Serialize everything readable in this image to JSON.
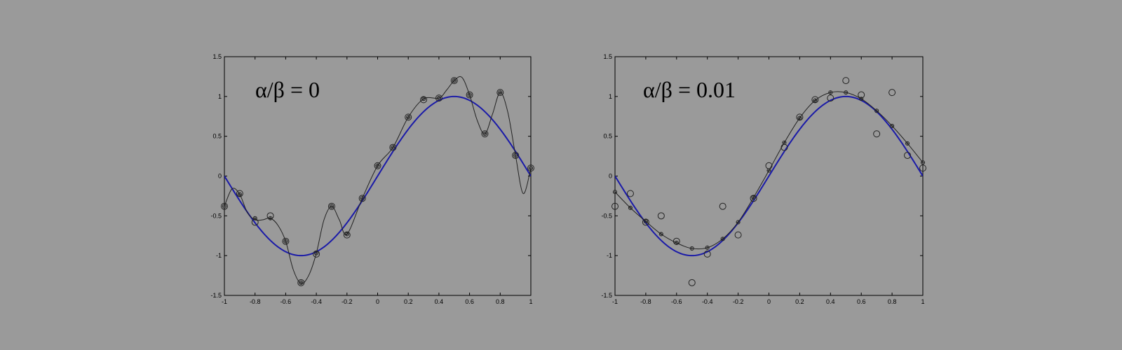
{
  "chart_data": [
    {
      "type": "line",
      "annotation": "α/β = 0",
      "xlim": [
        -1,
        1
      ],
      "ylim": [
        -1.5,
        1.5
      ],
      "x_ticks": [
        "-1",
        "-0.8",
        "-0.6",
        "-0.4",
        "-0.2",
        "0",
        "0.2",
        "0.4",
        "0.6",
        "0.8",
        "1"
      ],
      "y_ticks": [
        "-1.5",
        "-1",
        "-0.5",
        "0",
        "0.5",
        "1",
        "1.5"
      ],
      "grid": false,
      "series": [
        {
          "kind": "true_function",
          "color": "#1a1aa8",
          "x": [
            -1,
            -0.9,
            -0.8,
            -0.7,
            -0.6,
            -0.5,
            -0.4,
            -0.3,
            -0.2,
            -0.1,
            0,
            0.1,
            0.2,
            0.3,
            0.4,
            0.5,
            0.6,
            0.7,
            0.8,
            0.9,
            1
          ],
          "y": [
            0,
            -0.31,
            -0.59,
            -0.81,
            -0.95,
            -1,
            -0.95,
            -0.81,
            -0.59,
            -0.31,
            0,
            0.31,
            0.59,
            0.81,
            0.95,
            1,
            0.95,
            0.81,
            0.59,
            0.31,
            0
          ]
        },
        {
          "kind": "fit",
          "color": "#222222",
          "x": [
            -1,
            -0.95,
            -0.9,
            -0.85,
            -0.8,
            -0.75,
            -0.7,
            -0.65,
            -0.6,
            -0.55,
            -0.5,
            -0.45,
            -0.4,
            -0.35,
            -0.3,
            -0.25,
            -0.2,
            -0.1,
            0,
            0.1,
            0.2,
            0.3,
            0.4,
            0.45,
            0.5,
            0.55,
            0.6,
            0.65,
            0.7,
            0.75,
            0.8,
            0.85,
            0.9,
            0.95,
            1
          ],
          "y": [
            -0.38,
            -0.16,
            -0.23,
            -0.46,
            -0.55,
            -0.55,
            -0.53,
            -0.62,
            -0.82,
            -1.18,
            -1.35,
            -1.25,
            -0.97,
            -0.55,
            -0.38,
            -0.55,
            -0.73,
            -0.28,
            0.13,
            0.36,
            0.74,
            0.97,
            0.98,
            1.08,
            1.2,
            1.24,
            1.02,
            0.7,
            0.53,
            0.78,
            1.05,
            0.8,
            0.26,
            -0.22,
            0.1
          ]
        },
        {
          "kind": "data_points",
          "color": "#222222",
          "x": [
            -1,
            -0.9,
            -0.8,
            -0.7,
            -0.6,
            -0.5,
            -0.4,
            -0.3,
            -0.2,
            -0.1,
            0,
            0.1,
            0.2,
            0.3,
            0.4,
            0.5,
            0.6,
            0.7,
            0.8,
            0.9,
            1
          ],
          "y": [
            -0.38,
            -0.22,
            -0.58,
            -0.5,
            -0.82,
            -1.34,
            -0.98,
            -0.38,
            -0.74,
            -0.28,
            0.13,
            0.36,
            0.74,
            0.96,
            0.98,
            1.2,
            1.02,
            0.53,
            1.05,
            0.26,
            0.1
          ]
        },
        {
          "kind": "fit_points",
          "color": "#222222",
          "x": [
            -1,
            -0.9,
            -0.8,
            -0.7,
            -0.6,
            -0.5,
            -0.4,
            -0.3,
            -0.2,
            -0.1,
            0,
            0.1,
            0.2,
            0.3,
            0.4,
            0.5,
            0.6,
            0.7,
            0.8,
            0.9,
            1
          ],
          "y": [
            -0.38,
            -0.23,
            -0.53,
            -0.53,
            -0.82,
            -1.34,
            -0.97,
            -0.38,
            -0.73,
            -0.28,
            0.13,
            0.36,
            0.74,
            0.97,
            0.98,
            1.2,
            1.02,
            0.53,
            1.05,
            0.26,
            0.1
          ]
        }
      ]
    },
    {
      "type": "line",
      "annotation": "α/β = 0.01",
      "xlim": [
        -1,
        1
      ],
      "ylim": [
        -1.5,
        1.5
      ],
      "x_ticks": [
        "-1",
        "-0.8",
        "-0.6",
        "-0.4",
        "-0.2",
        "0",
        "0.2",
        "0.4",
        "0.6",
        "0.8",
        "1"
      ],
      "y_ticks": [
        "-1.5",
        "-1",
        "-0.5",
        "0",
        "0.5",
        "1",
        "1.5"
      ],
      "grid": false,
      "series": [
        {
          "kind": "true_function",
          "color": "#1a1aa8",
          "x": [
            -1,
            -0.9,
            -0.8,
            -0.7,
            -0.6,
            -0.5,
            -0.4,
            -0.3,
            -0.2,
            -0.1,
            0,
            0.1,
            0.2,
            0.3,
            0.4,
            0.5,
            0.6,
            0.7,
            0.8,
            0.9,
            1
          ],
          "y": [
            0,
            -0.31,
            -0.59,
            -0.81,
            -0.95,
            -1,
            -0.95,
            -0.81,
            -0.59,
            -0.31,
            0,
            0.31,
            0.59,
            0.81,
            0.95,
            1,
            0.95,
            0.81,
            0.59,
            0.31,
            0
          ]
        },
        {
          "kind": "fit",
          "color": "#222222",
          "x": [
            -1,
            -0.9,
            -0.8,
            -0.7,
            -0.6,
            -0.5,
            -0.4,
            -0.3,
            -0.2,
            -0.1,
            0,
            0.1,
            0.2,
            0.3,
            0.4,
            0.5,
            0.6,
            0.7,
            0.8,
            0.9,
            1
          ],
          "y": [
            -0.2,
            -0.4,
            -0.57,
            -0.73,
            -0.84,
            -0.91,
            -0.9,
            -0.79,
            -0.58,
            -0.27,
            0.07,
            0.42,
            0.73,
            0.95,
            1.05,
            1.05,
            0.97,
            0.82,
            0.63,
            0.41,
            0.17
          ]
        },
        {
          "kind": "data_points",
          "color": "#222222",
          "x": [
            -1,
            -0.9,
            -0.8,
            -0.7,
            -0.6,
            -0.5,
            -0.4,
            -0.3,
            -0.2,
            -0.1,
            0,
            0.1,
            0.2,
            0.3,
            0.4,
            0.5,
            0.6,
            0.7,
            0.8,
            0.9,
            1
          ],
          "y": [
            -0.38,
            -0.22,
            -0.58,
            -0.5,
            -0.82,
            -1.34,
            -0.98,
            -0.38,
            -0.74,
            -0.28,
            0.13,
            0.36,
            0.74,
            0.96,
            0.98,
            1.2,
            1.02,
            0.53,
            1.05,
            0.26,
            0.1
          ]
        },
        {
          "kind": "fit_points",
          "color": "#222222",
          "x": [
            -1,
            -0.9,
            -0.8,
            -0.7,
            -0.6,
            -0.5,
            -0.4,
            -0.3,
            -0.2,
            -0.1,
            0,
            0.1,
            0.2,
            0.3,
            0.4,
            0.5,
            0.6,
            0.7,
            0.8,
            0.9,
            1
          ],
          "y": [
            -0.2,
            -0.4,
            -0.57,
            -0.73,
            -0.84,
            -0.91,
            -0.9,
            -0.79,
            -0.58,
            -0.27,
            0.07,
            0.42,
            0.73,
            0.95,
            1.05,
            1.05,
            0.97,
            0.82,
            0.63,
            0.41,
            0.17
          ]
        }
      ]
    }
  ]
}
